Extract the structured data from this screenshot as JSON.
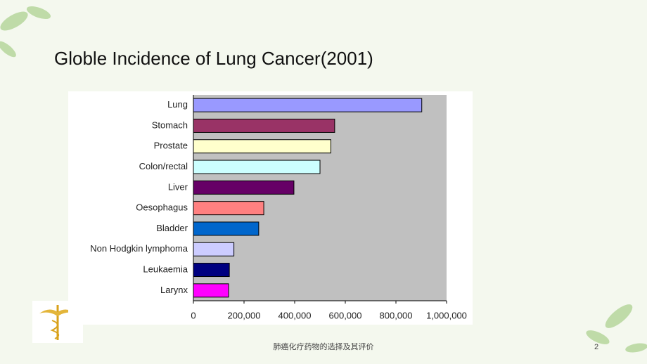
{
  "slide": {
    "title": "Globle Incidence of Lung Cancer(2001)",
    "footer": "肺癌化疗药物的选择及其评价",
    "page_number": 2
  },
  "chart_data": {
    "type": "hbar",
    "categories": [
      "Lung",
      "Stomach",
      "Prostate",
      "Colon/rectal",
      "Liver",
      "Oesophagus",
      "Bladder",
      "Non Hodgkin lymphoma",
      "Leukaemia",
      "Larynx"
    ],
    "values": [
      902000,
      558000,
      543000,
      500000,
      397000,
      278000,
      258000,
      160000,
      142000,
      139000
    ],
    "colors": [
      "#9999ff",
      "#993366",
      "#ffffcc",
      "#ccffff",
      "#660066",
      "#ff8080",
      "#0066cc",
      "#ccccff",
      "#000080",
      "#ff00ff"
    ],
    "xlim": [
      0,
      1000000
    ],
    "xticks": [
      0,
      {
        "value": 200000,
        "label": "200,000"
      },
      {
        "value": 400000,
        "label": "400,000"
      },
      {
        "value": 600000,
        "label": "600,000"
      },
      {
        "value": 800000,
        "label": "800,000"
      },
      {
        "value": 1000000,
        "label": "1,000,000"
      }
    ]
  }
}
